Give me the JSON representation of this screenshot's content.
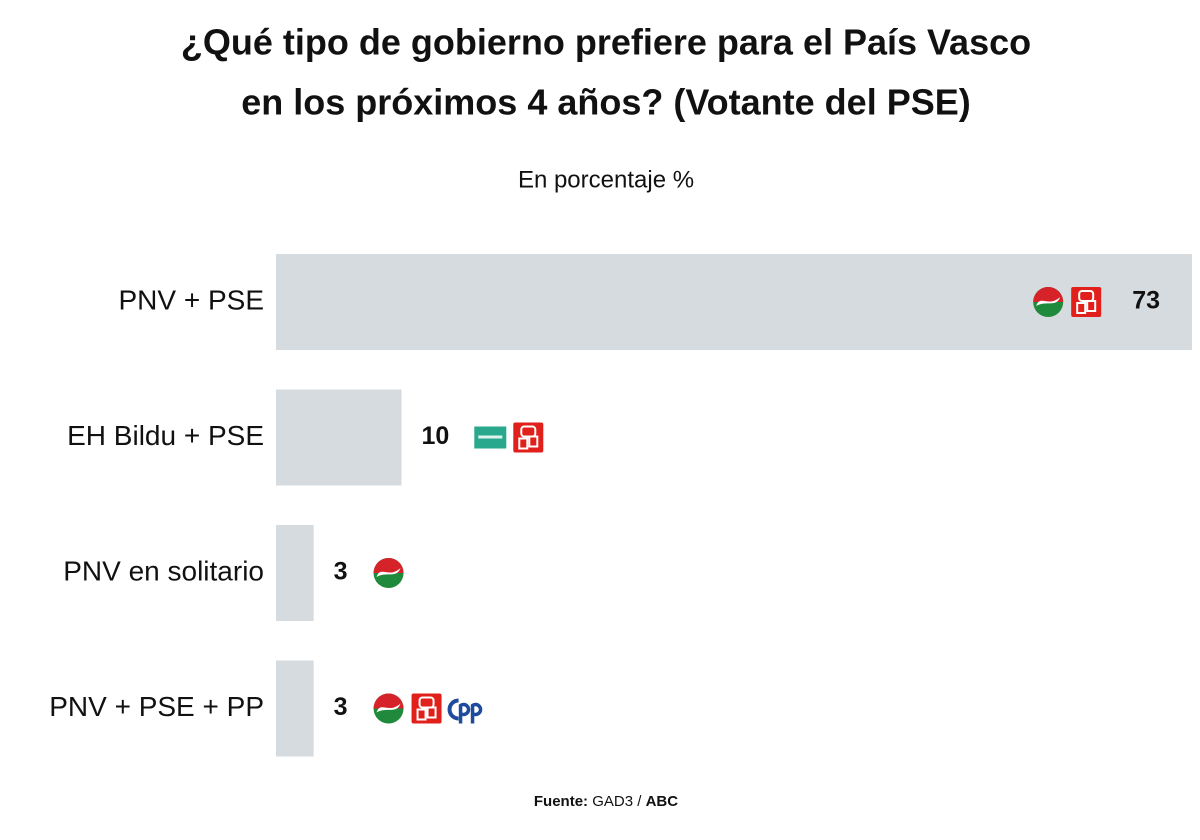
{
  "chart_data": {
    "type": "hbar",
    "title": [
      "¿Qué tipo de gobierno prefiere para el País Vasco",
      "en los próximos 4 años? (Votante del PSE)"
    ],
    "subtitle": "En porcentaje %",
    "categories": [
      "PNV + PSE",
      "EH Bildu + PSE",
      "PNV en solitario",
      "PNV + PSE + PP"
    ],
    "values": [
      73,
      10,
      3,
      3
    ],
    "color": "#d5dbdf",
    "xlim": [
      0,
      73
    ],
    "source": [
      "Fuente:",
      "GAD3 /",
      "ABC"
    ]
  }
}
